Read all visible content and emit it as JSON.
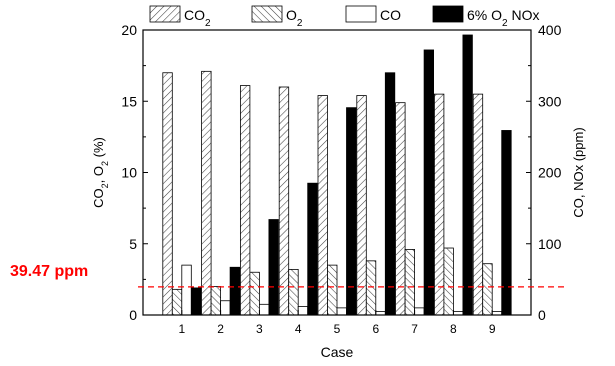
{
  "chart_data": {
    "type": "bar",
    "categories": [
      "1",
      "2",
      "3",
      "4",
      "5",
      "6",
      "7",
      "8",
      "9"
    ],
    "xlabel": "Case",
    "ylabel_left": {
      "base": "CO",
      "sub1": "2",
      "mid": ", O",
      "sub2": "2",
      "tail": " (%)"
    },
    "ylabel_right": "CO, NOx (ppm)",
    "ylim_left": [
      0,
      20
    ],
    "ylim_right": [
      0,
      400
    ],
    "yticks_left": [
      0,
      5,
      10,
      15,
      20
    ],
    "yticks_right": [
      0,
      100,
      200,
      300,
      400
    ],
    "series": [
      {
        "name": "CO2",
        "legend": {
          "base": "CO",
          "sub": "2"
        },
        "axis": "left",
        "pattern": "diag-fwd",
        "values": [
          17.0,
          17.1,
          16.1,
          16.0,
          15.4,
          15.4,
          14.9,
          15.5,
          15.5
        ]
      },
      {
        "name": "O2",
        "legend": {
          "base": "O",
          "sub": "2"
        },
        "axis": "left",
        "pattern": "diag-back",
        "values": [
          1.8,
          2.0,
          3.0,
          3.2,
          3.5,
          3.8,
          4.6,
          4.7,
          3.6
        ]
      },
      {
        "name": "CO",
        "legend": {
          "base": "CO",
          "sub": ""
        },
        "axis": "right",
        "pattern": "white",
        "values": [
          70,
          20,
          15,
          12,
          10,
          5,
          10,
          5,
          5
        ]
      },
      {
        "name": "6% O2 NOx",
        "legend": {
          "base": "6% O",
          "sub": "2",
          "tail": " NOx"
        },
        "axis": "right",
        "pattern": "black",
        "values": [
          38,
          67,
          134,
          185,
          291,
          340,
          372,
          393,
          259
        ]
      }
    ],
    "reference_line": {
      "value": 39.47,
      "axis": "right",
      "label": "39.47 ppm",
      "color": "#ff0000"
    },
    "legend_position": "top",
    "grid": false
  }
}
